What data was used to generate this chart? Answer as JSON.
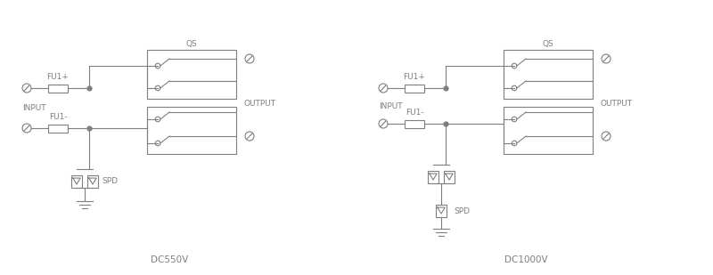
{
  "bg_color": "#ffffff",
  "line_color": "#7f7f7f",
  "text_color": "#7f7f7f",
  "lw": 0.8,
  "title_dc550": "DC550V",
  "title_dc1000": "DC1000V",
  "label_input": "INPUT",
  "label_output": "OUTPUT",
  "label_fu1p": "FU1+",
  "label_fu1m": "FU1-",
  "label_qs": "QS",
  "label_spd": "SPD",
  "fs_label": 6.5,
  "fs_title": 7.5,
  "dot_size": 3.5
}
